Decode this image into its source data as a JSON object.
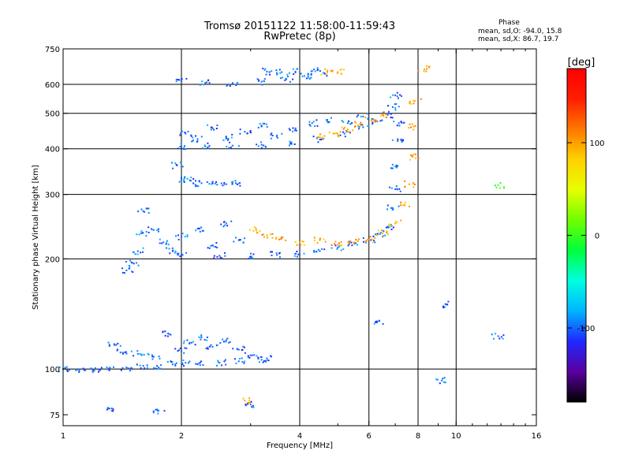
{
  "header": {
    "title_line1": "Tromsø 20151122 11:58:00-11:59:43",
    "title_line2": "RwPretec (8p)"
  },
  "phase_info": {
    "title": "Phase",
    "o_mode": "mean, sd,O:  -94.0, 15.8",
    "x_mode": "mean, sd,X:  86.7, 19.7"
  },
  "chart_data": {
    "type": "scatter",
    "xlabel": "Frequency [MHz]",
    "ylabel": "Stationary phase Virtual Height [km]",
    "x_scale": "log",
    "y_scale": "log",
    "xlim": [
      1,
      16
    ],
    "ylim": [
      70,
      750
    ],
    "x_ticks": [
      1,
      2,
      4,
      6,
      8,
      10,
      16
    ],
    "y_ticks": [
      75,
      100,
      200,
      300,
      400,
      500,
      600,
      750
    ],
    "x_grid": [
      2,
      4,
      6,
      8,
      10
    ],
    "y_grid": [
      100,
      200,
      300,
      400,
      500,
      600
    ],
    "grid": true,
    "colorbar": {
      "label": "[deg]",
      "range": [
        -180,
        180
      ],
      "ticks": [
        100,
        0,
        -100
      ],
      "stops": [
        "#000000",
        "#5a009e",
        "#1f28ff",
        "#00b4ff",
        "#00ffe0",
        "#00ff3c",
        "#6eff00",
        "#e6ff00",
        "#ffd200",
        "#ff7800",
        "#ff1e00",
        "#ff0000"
      ]
    },
    "series": [
      {
        "points": [
          [
            1.0,
            100,
            -100
          ],
          [
            1.1,
            99,
            -100
          ],
          [
            1.2,
            99,
            -100
          ],
          [
            1.3,
            100,
            -100
          ],
          [
            1.45,
            101,
            -100
          ],
          [
            1.6,
            102,
            -100
          ],
          [
            1.75,
            101,
            -100
          ],
          [
            1.9,
            103,
            -100
          ],
          [
            2.05,
            104,
            -100
          ],
          [
            2.2,
            103,
            -100
          ],
          [
            2.5,
            104,
            -100
          ],
          [
            2.8,
            105,
            -100
          ],
          [
            3.2,
            106,
            -100
          ]
        ]
      },
      {
        "points": [
          [
            1.35,
            117,
            -100
          ],
          [
            1.4,
            111,
            -100
          ],
          [
            1.55,
            110,
            -100
          ],
          [
            1.7,
            108,
            -100
          ],
          [
            1.85,
            125,
            -100
          ],
          [
            2.0,
            112,
            -100
          ],
          [
            2.1,
            118,
            -100
          ],
          [
            2.25,
            122,
            -100
          ],
          [
            2.4,
            115,
            -100
          ],
          [
            2.6,
            120,
            -100
          ],
          [
            2.8,
            113,
            -100
          ],
          [
            3.0,
            109,
            -100
          ],
          [
            3.3,
            107,
            -100
          ]
        ]
      },
      {
        "points": [
          [
            1.45,
            186,
            -100
          ],
          [
            1.5,
            195,
            -100
          ],
          [
            1.55,
            210,
            -100
          ],
          [
            1.58,
            235,
            -100
          ],
          [
            1.6,
            270,
            -100
          ],
          [
            1.7,
            240,
            -100
          ],
          [
            1.8,
            222,
            -100
          ],
          [
            1.9,
            210,
            -100
          ],
          [
            2.0,
            205,
            -100
          ],
          [
            2.5,
            204,
            -100
          ],
          [
            3.0,
            203,
            -100
          ],
          [
            3.5,
            205,
            -100
          ],
          [
            4.0,
            206,
            -100
          ],
          [
            4.5,
            210,
            -100
          ],
          [
            5.0,
            215,
            -100
          ],
          [
            5.5,
            220,
            -100
          ],
          [
            6.0,
            226,
            -100
          ],
          [
            6.4,
            234,
            -100
          ],
          [
            6.7,
            245,
            -100
          ],
          [
            6.9,
            275,
            -100
          ],
          [
            7.0,
            310,
            -100
          ],
          [
            7.05,
            360,
            -100
          ],
          [
            7.1,
            420,
            -100
          ],
          [
            7.15,
            470,
            -100
          ]
        ]
      },
      {
        "points": [
          [
            3.1,
            240,
            100
          ],
          [
            3.3,
            232,
            100
          ],
          [
            3.6,
            228,
            100
          ],
          [
            4.0,
            222,
            100
          ],
          [
            4.5,
            225,
            100
          ],
          [
            5.0,
            219,
            100
          ],
          [
            5.5,
            222,
            100
          ],
          [
            6.0,
            226,
            100
          ],
          [
            6.5,
            235,
            100
          ],
          [
            7.0,
            250,
            100
          ],
          [
            7.4,
            280,
            100
          ],
          [
            7.6,
            320,
            100
          ],
          [
            7.75,
            380,
            100
          ],
          [
            7.8,
            460,
            100
          ],
          [
            7.85,
            540,
            100
          ]
        ]
      },
      {
        "points": [
          [
            2.0,
            405,
            -100
          ],
          [
            2.3,
            406,
            -100
          ],
          [
            2.7,
            408,
            -100
          ],
          [
            3.2,
            410,
            -100
          ],
          [
            3.8,
            415,
            -100
          ],
          [
            4.5,
            424,
            -100
          ],
          [
            5.2,
            440,
            -100
          ],
          [
            5.8,
            458,
            -100
          ],
          [
            6.3,
            475,
            -100
          ],
          [
            6.7,
            495,
            -100
          ],
          [
            6.9,
            520,
            -100
          ],
          [
            7.0,
            560,
            -100
          ]
        ]
      },
      {
        "points": [
          [
            2.05,
            440,
            -100
          ],
          [
            2.2,
            425,
            -100
          ],
          [
            2.4,
            455,
            -100
          ],
          [
            2.6,
            430,
            -100
          ],
          [
            2.9,
            445,
            -100
          ],
          [
            3.2,
            460,
            -100
          ],
          [
            3.5,
            435,
            -100
          ],
          [
            3.9,
            450,
            -100
          ],
          [
            4.3,
            470,
            -100
          ],
          [
            4.7,
            480,
            -100
          ],
          [
            5.3,
            470,
            -100
          ],
          [
            5.8,
            490,
            -100
          ]
        ]
      },
      {
        "points": [
          [
            4.5,
            430,
            100
          ],
          [
            4.9,
            440,
            100
          ],
          [
            5.3,
            452,
            100
          ],
          [
            5.7,
            466,
            100
          ],
          [
            6.1,
            480,
            100
          ],
          [
            6.5,
            495,
            100
          ]
        ]
      },
      {
        "points": [
          [
            2.0,
            612,
            -100
          ],
          [
            2.3,
            605,
            -100
          ],
          [
            2.7,
            605,
            -100
          ],
          [
            3.2,
            610,
            -100
          ],
          [
            3.7,
            620,
            -100
          ],
          [
            4.2,
            632,
            -100
          ],
          [
            4.6,
            645,
            -100
          ]
        ]
      },
      {
        "points": [
          [
            3.3,
            650,
            -100
          ],
          [
            3.6,
            648,
            -100
          ],
          [
            3.9,
            650,
            -100
          ],
          [
            4.3,
            652,
            -100
          ],
          [
            4.7,
            648,
            100
          ],
          [
            5.0,
            648,
            100
          ]
        ]
      },
      {
        "points": [
          [
            1.95,
            360,
            -100
          ],
          [
            2.0,
            330,
            -100
          ],
          [
            2.1,
            328,
            -100
          ],
          [
            2.25,
            322,
            -100
          ],
          [
            2.4,
            325,
            -100
          ],
          [
            2.6,
            320,
            -100
          ],
          [
            2.75,
            322,
            -100
          ]
        ]
      },
      {
        "points": [
          [
            2.0,
            230,
            -100
          ],
          [
            2.2,
            242,
            -100
          ],
          [
            2.4,
            218,
            -100
          ],
          [
            2.6,
            250,
            -100
          ],
          [
            2.8,
            225,
            -100
          ]
        ]
      },
      {
        "points": [
          [
            1.3,
            78,
            -100
          ],
          [
            1.75,
            77,
            -100
          ],
          [
            2.9,
            82,
            100
          ],
          [
            3.0,
            80,
            -100
          ],
          [
            6.3,
            135,
            -100
          ],
          [
            8.3,
            660,
            100
          ],
          [
            9.2,
            93,
            -100
          ],
          [
            9.5,
            150,
            -100
          ],
          [
            12.8,
            123,
            -100
          ],
          [
            12.8,
            318,
            0
          ]
        ]
      }
    ]
  }
}
